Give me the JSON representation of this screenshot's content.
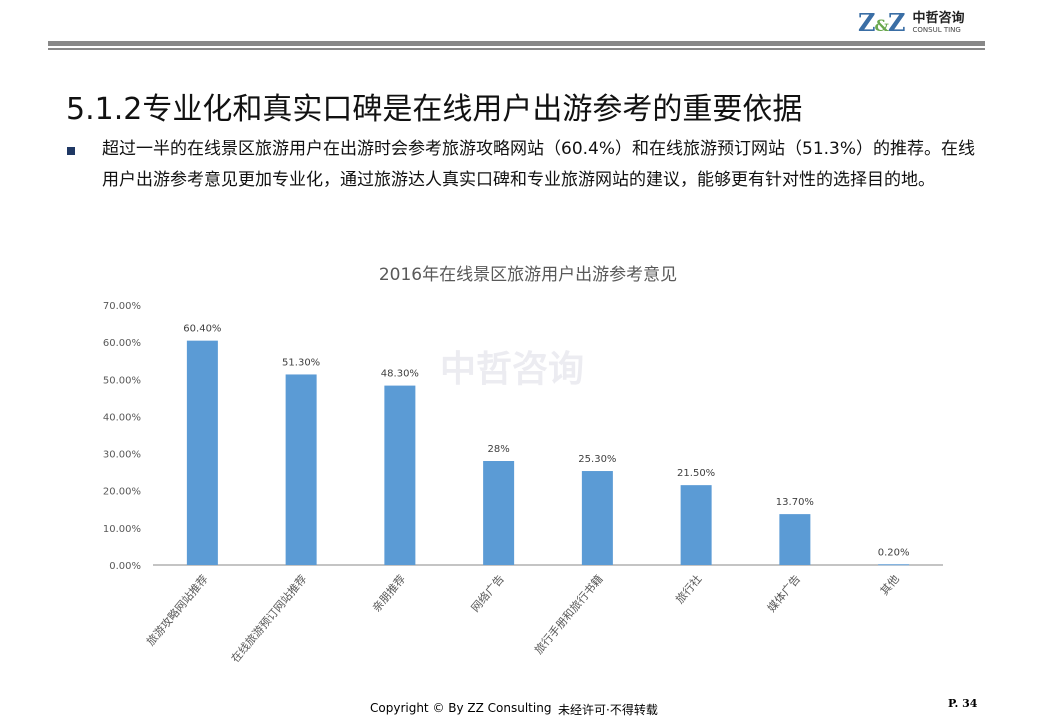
{
  "header": {
    "logo_text": "Z&Z",
    "logo_cn": "中哲咨询",
    "logo_en": "CONSUL TING"
  },
  "title": "5.1.2专业化和真实口碑是在线用户出游参考的重要依据",
  "body_text": "超过一半的在线景区旅游用户在出游时会参考旅游攻略网站（60.4%）和在线旅游预订网站（51.3%）的推荐。在线用户出游参考意见更加专业化，通过旅游达人真实口碑和专业旅游网站的建议，能够更有针对性的选择目的地。",
  "watermark": "中哲咨询",
  "footer": {
    "copyright": "Copyright © By  ZZ Consulting",
    "notice": "未经许可·不得转载",
    "page": "P. 34"
  },
  "chart_data": {
    "type": "bar",
    "title": "2016年在线景区旅游用户出游参考意见",
    "categories": [
      "旅游攻略网站推荐",
      "在线旅游预订网站推荐",
      "亲朋推荐",
      "网络广告",
      "旅行手册和旅行书籍",
      "旅行社",
      "媒体广告",
      "其他"
    ],
    "values": [
      60.4,
      51.3,
      48.3,
      28,
      25.3,
      21.5,
      13.7,
      0.2
    ],
    "data_labels": [
      "60.40%",
      "51.30%",
      "48.30%",
      "28%",
      "25.30%",
      "21.50%",
      "13.70%",
      "0.20%"
    ],
    "yticks": [
      "0.00%",
      "10.00%",
      "20.00%",
      "30.00%",
      "40.00%",
      "50.00%",
      "60.00%",
      "70.00%"
    ],
    "ylim": [
      0,
      70
    ],
    "xlabel": "",
    "ylabel": "",
    "grid": false,
    "bar_color": "#5b9bd5"
  }
}
